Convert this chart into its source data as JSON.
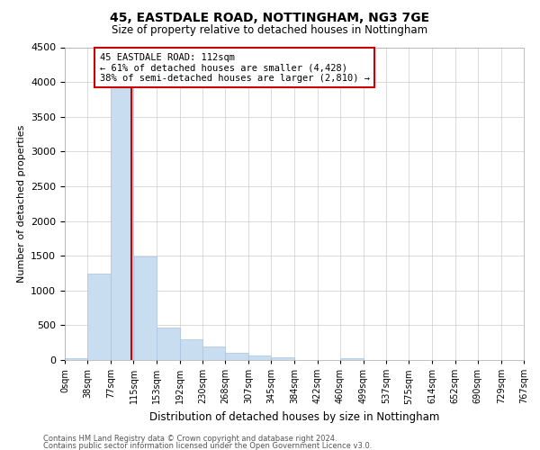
{
  "title": "45, EASTDALE ROAD, NOTTINGHAM, NG3 7GE",
  "subtitle": "Size of property relative to detached houses in Nottingham",
  "xlabel": "Distribution of detached houses by size in Nottingham",
  "ylabel": "Number of detached properties",
  "annotation_line1": "45 EASTDALE ROAD: 112sqm",
  "annotation_line2": "← 61% of detached houses are smaller (4,428)",
  "annotation_line3": "38% of semi-detached houses are larger (2,810) →",
  "property_size_sqm": 112,
  "bin_edges": [
    0,
    38,
    77,
    115,
    153,
    192,
    230,
    268,
    307,
    345,
    384,
    422,
    460,
    499,
    537,
    575,
    614,
    652,
    690,
    729,
    767
  ],
  "bin_labels": [
    "0sqm",
    "38sqm",
    "77sqm",
    "115sqm",
    "153sqm",
    "192sqm",
    "230sqm",
    "268sqm",
    "307sqm",
    "345sqm",
    "384sqm",
    "422sqm",
    "460sqm",
    "499sqm",
    "537sqm",
    "575sqm",
    "614sqm",
    "652sqm",
    "690sqm",
    "729sqm",
    "767sqm"
  ],
  "bar_heights": [
    30,
    1240,
    4000,
    1490,
    470,
    300,
    190,
    100,
    60,
    35,
    0,
    0,
    30,
    0,
    0,
    0,
    0,
    0,
    0,
    0
  ],
  "bar_color": "#c8ddf0",
  "bar_edge_color": "#a8c4e0",
  "property_line_color": "#cc0000",
  "annotation_box_color": "#cc0000",
  "grid_color": "#cccccc",
  "ylim": [
    0,
    4500
  ],
  "yticks": [
    0,
    500,
    1000,
    1500,
    2000,
    2500,
    3000,
    3500,
    4000,
    4500
  ],
  "footnote1": "Contains HM Land Registry data © Crown copyright and database right 2024.",
  "footnote2": "Contains public sector information licensed under the Open Government Licence v3.0.",
  "background_color": "#ffffff",
  "fig_width": 6.0,
  "fig_height": 5.0,
  "fig_dpi": 100
}
